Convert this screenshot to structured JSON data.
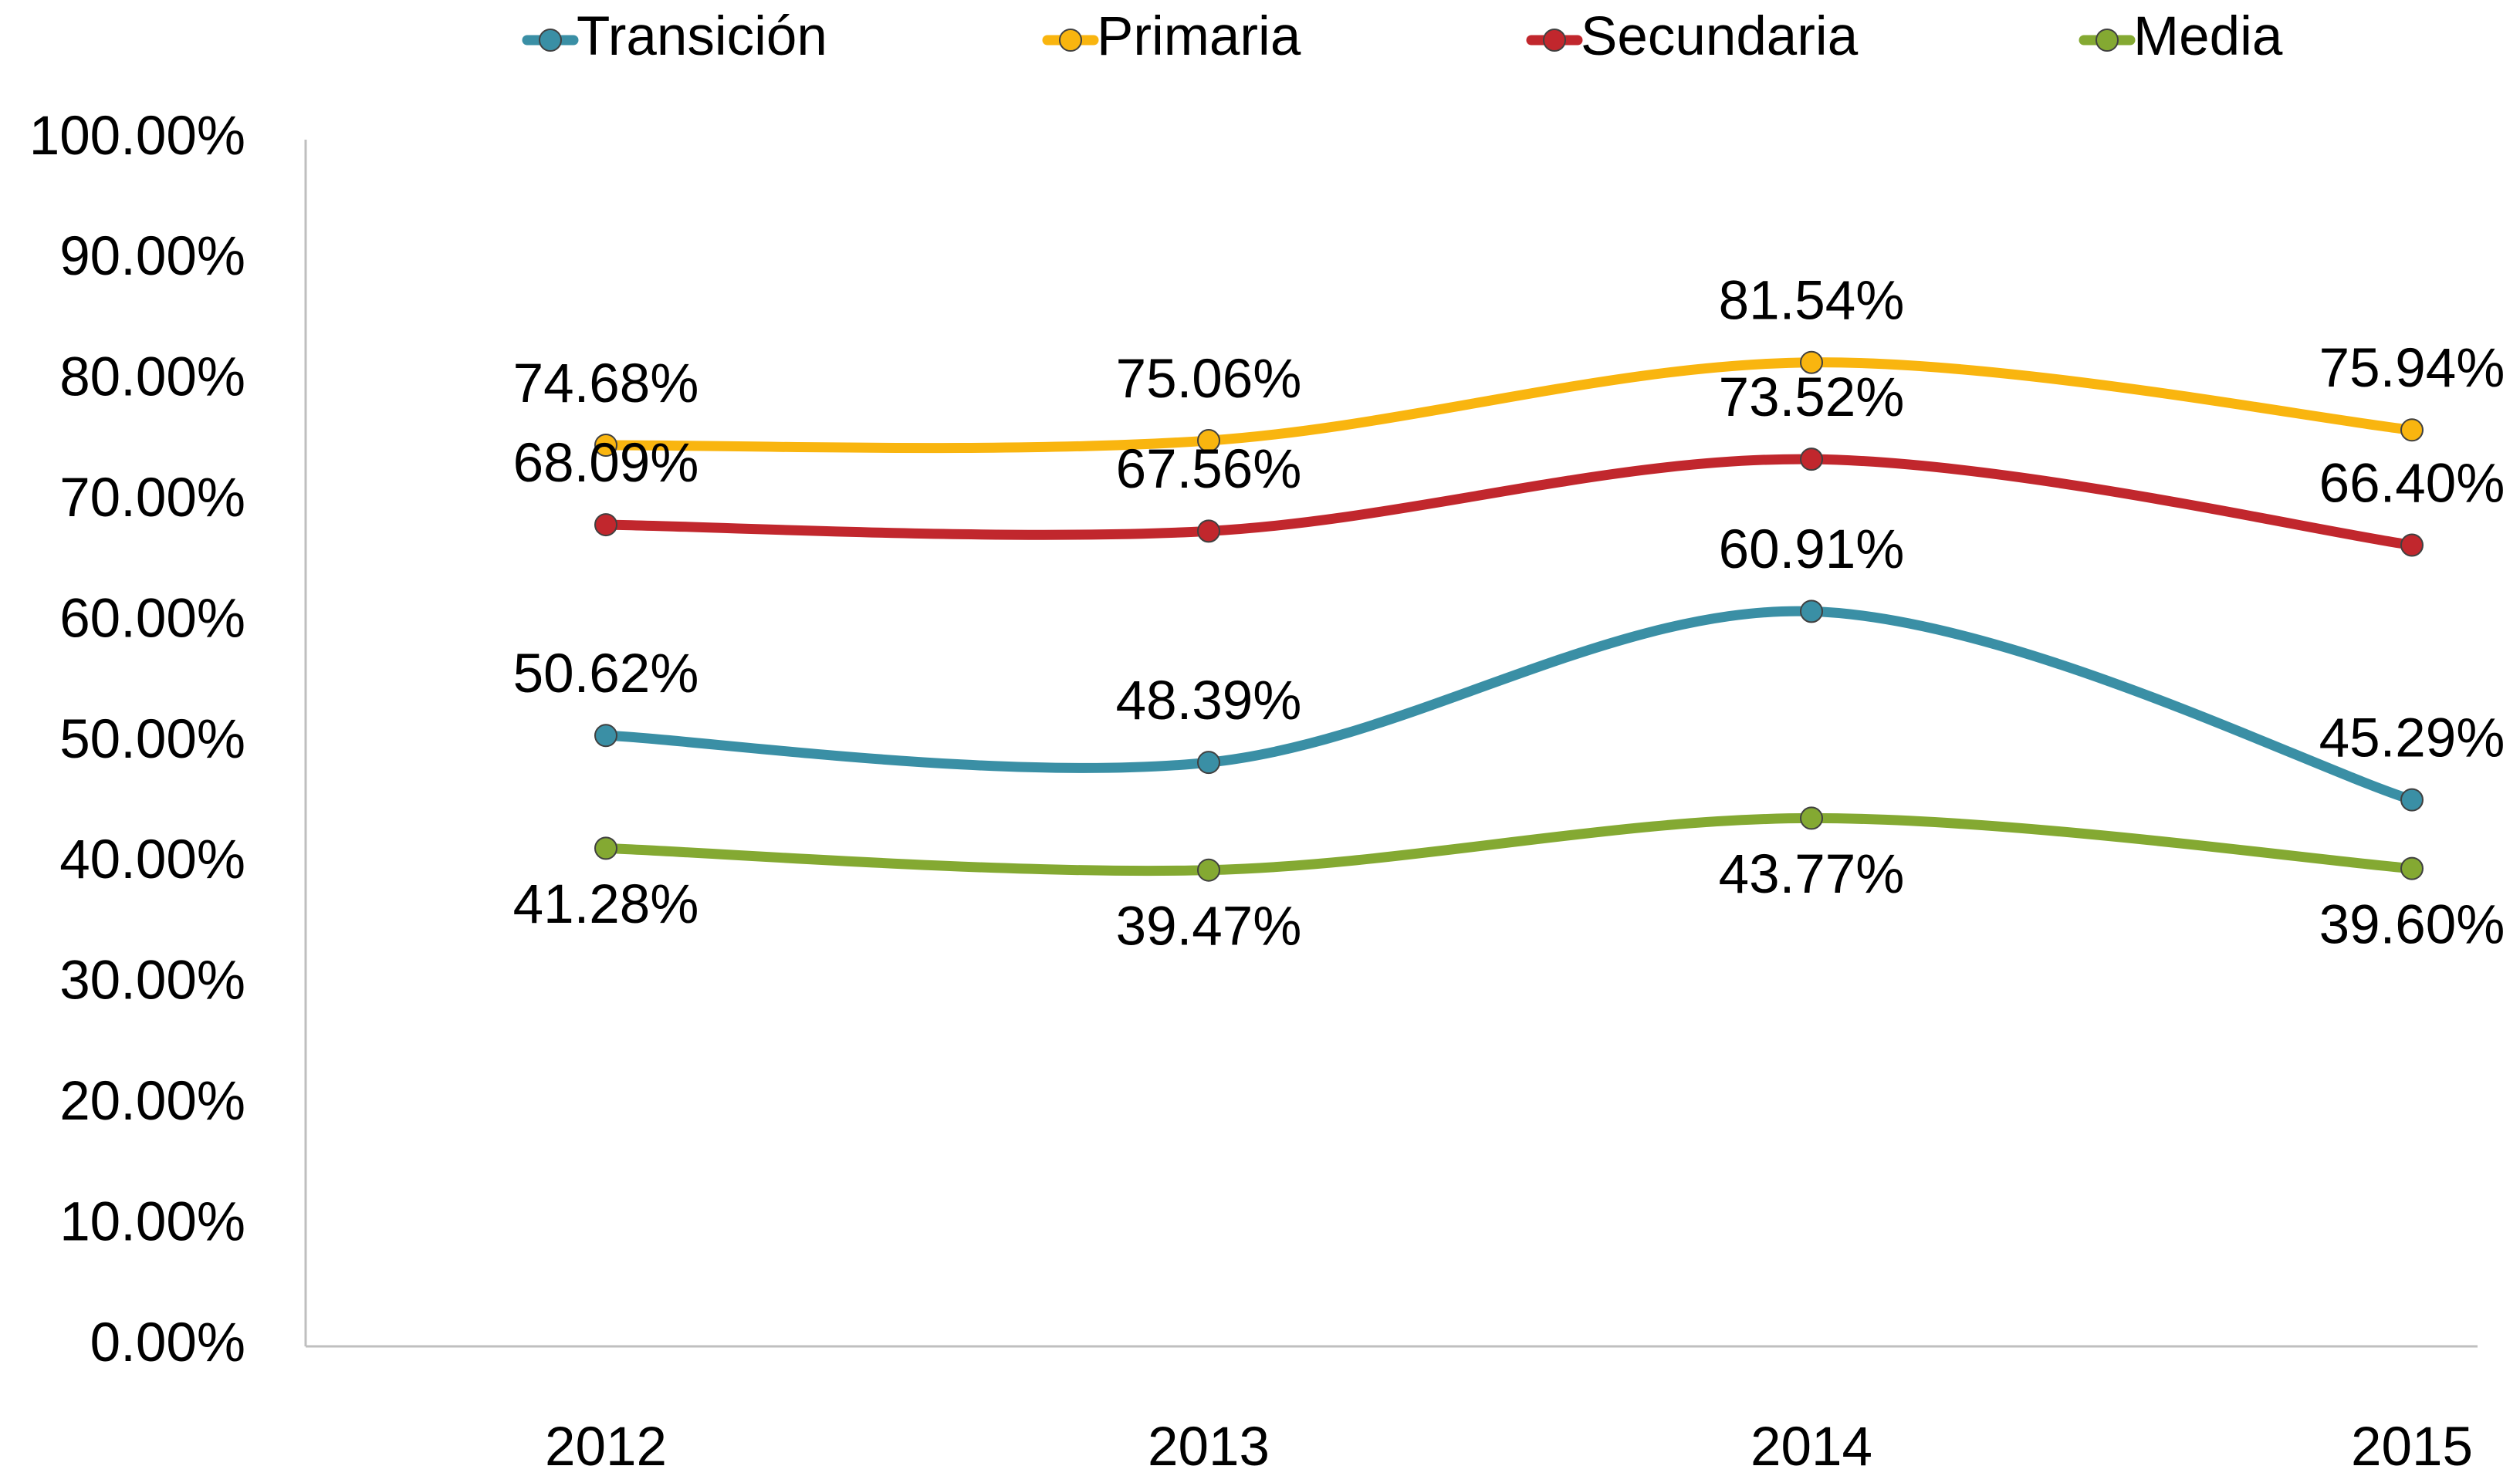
{
  "chart_data": {
    "type": "line",
    "categories": [
      "2012",
      "2013",
      "2014",
      "2015"
    ],
    "series": [
      {
        "name": "Transición",
        "color": "#3a8fa5",
        "values": [
          50.62,
          48.39,
          60.91,
          45.29
        ],
        "value_labels": [
          "50.62%",
          "48.39%",
          "60.91%",
          "45.29%"
        ]
      },
      {
        "name": "Primaria",
        "color": "#f9b50f",
        "values": [
          74.68,
          75.06,
          81.54,
          75.94
        ],
        "value_labels": [
          "74.68%",
          "75.06%",
          "81.54%",
          "75.94%"
        ]
      },
      {
        "name": "Secundaria",
        "color": "#c1272d",
        "values": [
          68.09,
          67.56,
          73.52,
          66.4
        ],
        "value_labels": [
          "68.09%",
          "67.56%",
          "73.52%",
          "66.40%"
        ]
      },
      {
        "name": "Media",
        "color": "#84a932",
        "values": [
          41.28,
          39.47,
          43.77,
          39.6
        ],
        "value_labels": [
          "41.28%",
          "39.47%",
          "43.77%",
          "39.60%"
        ]
      }
    ],
    "ylim": [
      0,
      100
    ],
    "yticks": [
      {
        "value": 0,
        "label": "0.00%"
      },
      {
        "value": 10,
        "label": "10.00%"
      },
      {
        "value": 20,
        "label": "20.00%"
      },
      {
        "value": 30,
        "label": "30.00%"
      },
      {
        "value": 40,
        "label": "40.00%"
      },
      {
        "value": 50,
        "label": "50.00%"
      },
      {
        "value": 60,
        "label": "60.00%"
      },
      {
        "value": 70,
        "label": "70.00%"
      },
      {
        "value": 80,
        "label": "80.00%"
      },
      {
        "value": 90,
        "label": "90.00%"
      },
      {
        "value": 100,
        "label": "100.00%"
      }
    ],
    "grid": false,
    "smooth": true,
    "legend": "top"
  }
}
